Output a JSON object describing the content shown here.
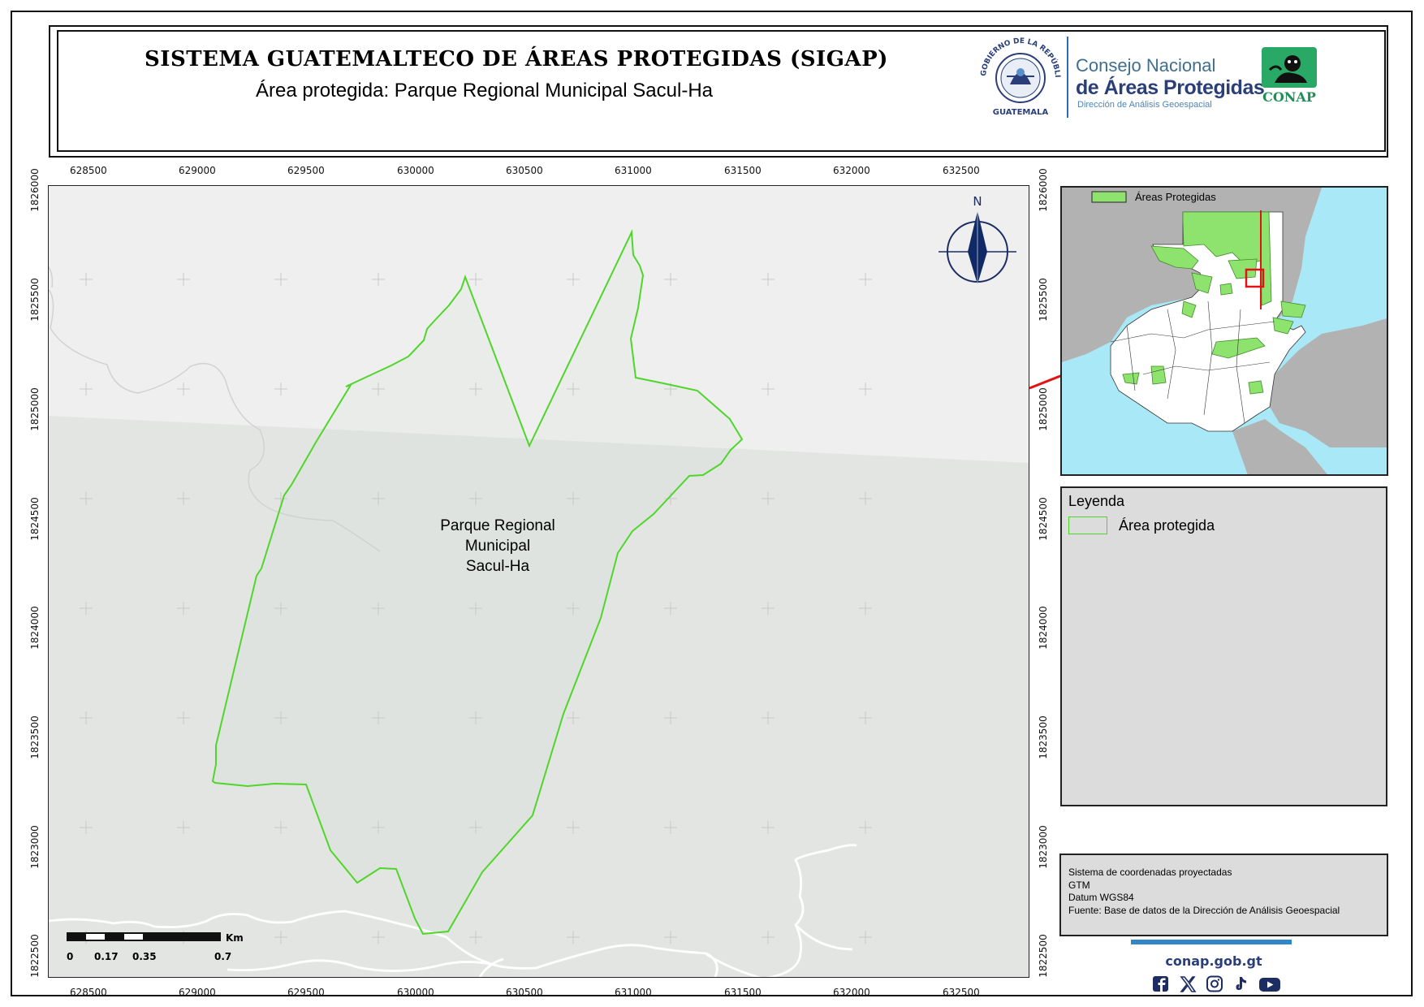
{
  "header": {
    "title": "SISTEMA GUATEMALTECO DE ÁREAS PROTEGIDAS  (SIGAP)",
    "subtitle": "Área protegida: Parque Regional Municipal Sacul-Ha",
    "seal_text": "GOBIERNO DE LA REPÚBLICA · GUATEMALA",
    "org_line1": "Consejo Nacional",
    "org_line2": "de Áreas Protegidas",
    "org_line3": "Dirección de Análisis Geoespacial",
    "conap_label": "CONAP"
  },
  "map": {
    "area_label_lines": [
      "Parque Regional",
      "Municipal",
      "Sacul-Ha"
    ],
    "north_label": "N",
    "x_ticks": [
      "628500",
      "629000",
      "629500",
      "630000",
      "630500",
      "631000",
      "631500",
      "632000",
      "632500"
    ],
    "y_ticks": [
      "1826000",
      "1825500",
      "1825000",
      "1824500",
      "1824000",
      "1823500",
      "1823000",
      "1822500"
    ],
    "scale_bar": {
      "unit": "Km",
      "labels": [
        "0",
        "0.17",
        "0.35",
        "0.7"
      ]
    },
    "colors": {
      "boundary": "#4fd62a",
      "land_north": "#efefef",
      "land_south": "#e3e5e3",
      "roads": "#ffffff",
      "grid_cross": "#cfcfcf"
    }
  },
  "inset": {
    "legend_label": "Áreas Protegidas",
    "colors": {
      "water": "#a9e8f6",
      "neighbors": "#b2b2b2",
      "country": "#ffffff",
      "protected": "#8ee36e",
      "highlight": "#e01414"
    }
  },
  "legend": {
    "title": "Leyenda",
    "item_label": "Área protegida"
  },
  "info": {
    "lines": [
      "Sistema de coordenadas proyectadas",
      "GTM",
      "Datum WGS84",
      "Fuente: Base de datos de la Dirección de Análisis Geoespacial"
    ]
  },
  "footer": {
    "website": "conap.gob.gt",
    "social_icons": [
      "facebook-icon",
      "x-icon",
      "instagram-icon",
      "tiktok-icon",
      "youtube-icon"
    ]
  }
}
